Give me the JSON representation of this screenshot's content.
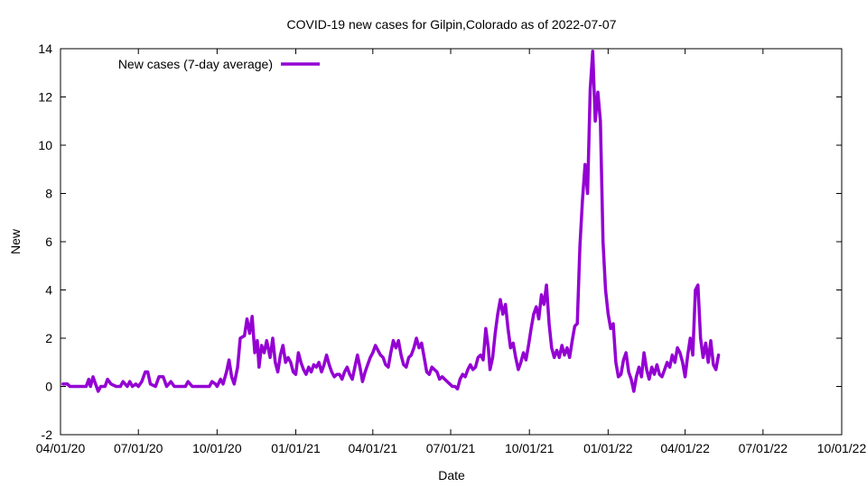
{
  "chart_data": {
    "type": "line",
    "title": "COVID-19 new cases for Gilpin,Colorado as of 2022-07-07",
    "xlabel": "Date",
    "ylabel": "New",
    "xlim": [
      "2020-04-01",
      "2022-10-01"
    ],
    "ylim": [
      -2,
      14
    ],
    "x_ticks": [
      "04/01/20",
      "07/01/20",
      "10/01/20",
      "01/01/21",
      "04/01/21",
      "07/01/21",
      "10/01/21",
      "01/01/22",
      "04/01/22",
      "07/01/22",
      "10/01/22"
    ],
    "y_ticks": [
      -2,
      0,
      2,
      4,
      6,
      8,
      10,
      12,
      14
    ],
    "grid": false,
    "legend": {
      "placement": "top-left"
    },
    "series": [
      {
        "name": "New cases (7-day average)",
        "color": "#9400d3",
        "points": [
          [
            "2020-04-04",
            0.1
          ],
          [
            "2020-04-09",
            0.1
          ],
          [
            "2020-04-12",
            0.0
          ],
          [
            "2020-05-01",
            0.0
          ],
          [
            "2020-05-04",
            0.3
          ],
          [
            "2020-05-06",
            0.0
          ],
          [
            "2020-05-09",
            0.4
          ],
          [
            "2020-05-12",
            0.1
          ],
          [
            "2020-05-15",
            -0.2
          ],
          [
            "2020-05-18",
            0.0
          ],
          [
            "2020-05-23",
            0.0
          ],
          [
            "2020-05-26",
            0.3
          ],
          [
            "2020-05-30",
            0.1
          ],
          [
            "2020-06-05",
            0.0
          ],
          [
            "2020-06-10",
            0.0
          ],
          [
            "2020-06-13",
            0.2
          ],
          [
            "2020-06-18",
            0.0
          ],
          [
            "2020-06-21",
            0.2
          ],
          [
            "2020-06-24",
            0.0
          ],
          [
            "2020-06-28",
            0.1
          ],
          [
            "2020-07-01",
            0.0
          ],
          [
            "2020-07-05",
            0.2
          ],
          [
            "2020-07-09",
            0.6
          ],
          [
            "2020-07-12",
            0.6
          ],
          [
            "2020-07-15",
            0.1
          ],
          [
            "2020-07-21",
            0.0
          ],
          [
            "2020-07-25",
            0.4
          ],
          [
            "2020-07-30",
            0.4
          ],
          [
            "2020-08-03",
            0.0
          ],
          [
            "2020-08-08",
            0.2
          ],
          [
            "2020-08-12",
            0.0
          ],
          [
            "2020-08-25",
            0.0
          ],
          [
            "2020-08-28",
            0.2
          ],
          [
            "2020-09-02",
            0.0
          ],
          [
            "2020-09-22",
            0.0
          ],
          [
            "2020-09-25",
            0.2
          ],
          [
            "2020-09-29",
            0.1
          ],
          [
            "2020-10-01",
            0.0
          ],
          [
            "2020-10-05",
            0.3
          ],
          [
            "2020-10-08",
            0.1
          ],
          [
            "2020-10-12",
            0.6
          ],
          [
            "2020-10-15",
            1.1
          ],
          [
            "2020-10-18",
            0.4
          ],
          [
            "2020-10-21",
            0.1
          ],
          [
            "2020-10-25",
            0.8
          ],
          [
            "2020-10-28",
            2.0
          ],
          [
            "2020-11-02",
            2.1
          ],
          [
            "2020-11-05",
            2.8
          ],
          [
            "2020-11-08",
            2.2
          ],
          [
            "2020-11-11",
            2.9
          ],
          [
            "2020-11-14",
            1.4
          ],
          [
            "2020-11-17",
            1.9
          ],
          [
            "2020-11-19",
            0.8
          ],
          [
            "2020-11-22",
            1.7
          ],
          [
            "2020-11-25",
            1.4
          ],
          [
            "2020-11-28",
            1.9
          ],
          [
            "2020-12-02",
            1.2
          ],
          [
            "2020-12-05",
            2.0
          ],
          [
            "2020-12-08",
            1.0
          ],
          [
            "2020-12-11",
            0.6
          ],
          [
            "2020-12-14",
            1.3
          ],
          [
            "2020-12-17",
            1.7
          ],
          [
            "2020-12-20",
            1.0
          ],
          [
            "2020-12-23",
            1.2
          ],
          [
            "2020-12-26",
            1.0
          ],
          [
            "2020-12-29",
            0.6
          ],
          [
            "2021-01-01",
            0.5
          ],
          [
            "2021-01-04",
            1.4
          ],
          [
            "2021-01-07",
            1.0
          ],
          [
            "2021-01-10",
            0.7
          ],
          [
            "2021-01-13",
            0.5
          ],
          [
            "2021-01-16",
            0.8
          ],
          [
            "2021-01-19",
            0.6
          ],
          [
            "2021-01-22",
            0.9
          ],
          [
            "2021-01-25",
            0.8
          ],
          [
            "2021-01-28",
            1.0
          ],
          [
            "2021-01-31",
            0.6
          ],
          [
            "2021-02-03",
            0.9
          ],
          [
            "2021-02-06",
            1.3
          ],
          [
            "2021-02-09",
            0.9
          ],
          [
            "2021-02-12",
            0.6
          ],
          [
            "2021-02-15",
            0.4
          ],
          [
            "2021-02-18",
            0.5
          ],
          [
            "2021-02-21",
            0.5
          ],
          [
            "2021-02-24",
            0.3
          ],
          [
            "2021-02-27",
            0.6
          ],
          [
            "2021-03-02",
            0.8
          ],
          [
            "2021-03-05",
            0.5
          ],
          [
            "2021-03-08",
            0.3
          ],
          [
            "2021-03-11",
            0.8
          ],
          [
            "2021-03-14",
            1.3
          ],
          [
            "2021-03-17",
            0.8
          ],
          [
            "2021-03-20",
            0.2
          ],
          [
            "2021-03-23",
            0.6
          ],
          [
            "2021-03-26",
            0.9
          ],
          [
            "2021-03-29",
            1.2
          ],
          [
            "2021-04-01",
            1.4
          ],
          [
            "2021-04-04",
            1.7
          ],
          [
            "2021-04-07",
            1.5
          ],
          [
            "2021-04-10",
            1.3
          ],
          [
            "2021-04-13",
            1.2
          ],
          [
            "2021-04-16",
            0.9
          ],
          [
            "2021-04-19",
            0.8
          ],
          [
            "2021-04-22",
            1.4
          ],
          [
            "2021-04-25",
            1.9
          ],
          [
            "2021-04-28",
            1.6
          ],
          [
            "2021-05-01",
            1.9
          ],
          [
            "2021-05-04",
            1.3
          ],
          [
            "2021-05-07",
            0.9
          ],
          [
            "2021-05-10",
            0.8
          ],
          [
            "2021-05-13",
            1.2
          ],
          [
            "2021-05-16",
            1.3
          ],
          [
            "2021-05-19",
            1.6
          ],
          [
            "2021-05-22",
            2.0
          ],
          [
            "2021-05-25",
            1.6
          ],
          [
            "2021-05-28",
            1.8
          ],
          [
            "2021-05-31",
            1.2
          ],
          [
            "2021-06-03",
            0.6
          ],
          [
            "2021-06-06",
            0.5
          ],
          [
            "2021-06-09",
            0.8
          ],
          [
            "2021-06-12",
            0.7
          ],
          [
            "2021-06-15",
            0.6
          ],
          [
            "2021-06-18",
            0.3
          ],
          [
            "2021-06-21",
            0.4
          ],
          [
            "2021-06-24",
            0.3
          ],
          [
            "2021-06-27",
            0.2
          ],
          [
            "2021-06-30",
            0.1
          ],
          [
            "2021-07-03",
            0.0
          ],
          [
            "2021-07-06",
            0.0
          ],
          [
            "2021-07-09",
            -0.1
          ],
          [
            "2021-07-12",
            0.3
          ],
          [
            "2021-07-15",
            0.5
          ],
          [
            "2021-07-18",
            0.4
          ],
          [
            "2021-07-21",
            0.7
          ],
          [
            "2021-07-24",
            0.9
          ],
          [
            "2021-07-27",
            0.7
          ],
          [
            "2021-07-30",
            0.8
          ],
          [
            "2021-08-02",
            1.2
          ],
          [
            "2021-08-05",
            1.3
          ],
          [
            "2021-08-08",
            1.1
          ],
          [
            "2021-08-11",
            2.4
          ],
          [
            "2021-08-14",
            1.6
          ],
          [
            "2021-08-16",
            0.7
          ],
          [
            "2021-08-19",
            1.2
          ],
          [
            "2021-08-22",
            2.2
          ],
          [
            "2021-08-25",
            3.0
          ],
          [
            "2021-08-28",
            3.6
          ],
          [
            "2021-08-31",
            3.0
          ],
          [
            "2021-09-03",
            3.4
          ],
          [
            "2021-09-06",
            2.4
          ],
          [
            "2021-09-09",
            1.6
          ],
          [
            "2021-09-12",
            1.8
          ],
          [
            "2021-09-15",
            1.2
          ],
          [
            "2021-09-18",
            0.7
          ],
          [
            "2021-09-21",
            1.0
          ],
          [
            "2021-09-24",
            1.4
          ],
          [
            "2021-09-27",
            1.1
          ],
          [
            "2021-09-30",
            1.7
          ],
          [
            "2021-10-03",
            2.4
          ],
          [
            "2021-10-06",
            3.0
          ],
          [
            "2021-10-09",
            3.3
          ],
          [
            "2021-10-12",
            2.8
          ],
          [
            "2021-10-15",
            3.8
          ],
          [
            "2021-10-18",
            3.4
          ],
          [
            "2021-10-21",
            4.2
          ],
          [
            "2021-10-24",
            2.6
          ],
          [
            "2021-10-27",
            1.6
          ],
          [
            "2021-10-30",
            1.2
          ],
          [
            "2021-11-02",
            1.5
          ],
          [
            "2021-11-05",
            1.2
          ],
          [
            "2021-11-08",
            1.7
          ],
          [
            "2021-11-11",
            1.3
          ],
          [
            "2021-11-14",
            1.6
          ],
          [
            "2021-11-17",
            1.2
          ],
          [
            "2021-11-20",
            1.9
          ],
          [
            "2021-11-23",
            2.5
          ],
          [
            "2021-11-26",
            2.6
          ],
          [
            "2021-11-29",
            5.8
          ],
          [
            "2021-12-02",
            7.7
          ],
          [
            "2021-12-05",
            9.2
          ],
          [
            "2021-12-08",
            8.0
          ],
          [
            "2021-12-11",
            12.3
          ],
          [
            "2021-12-14",
            13.9
          ],
          [
            "2021-12-17",
            11.0
          ],
          [
            "2021-12-20",
            12.2
          ],
          [
            "2021-12-23",
            11.0
          ],
          [
            "2021-12-26",
            6.0
          ],
          [
            "2021-12-29",
            4.0
          ],
          [
            "2022-01-01",
            3.0
          ],
          [
            "2022-01-04",
            2.4
          ],
          [
            "2022-01-07",
            2.6
          ],
          [
            "2022-01-10",
            1.0
          ],
          [
            "2022-01-13",
            0.4
          ],
          [
            "2022-01-16",
            0.5
          ],
          [
            "2022-01-19",
            1.1
          ],
          [
            "2022-01-22",
            1.4
          ],
          [
            "2022-01-25",
            0.6
          ],
          [
            "2022-01-28",
            0.3
          ],
          [
            "2022-01-31",
            -0.2
          ],
          [
            "2022-02-03",
            0.4
          ],
          [
            "2022-02-06",
            0.8
          ],
          [
            "2022-02-09",
            0.4
          ],
          [
            "2022-02-12",
            1.4
          ],
          [
            "2022-02-15",
            0.7
          ],
          [
            "2022-02-18",
            0.3
          ],
          [
            "2022-02-21",
            0.8
          ],
          [
            "2022-02-24",
            0.5
          ],
          [
            "2022-02-27",
            0.9
          ],
          [
            "2022-03-02",
            0.5
          ],
          [
            "2022-03-05",
            0.4
          ],
          [
            "2022-03-08",
            0.7
          ],
          [
            "2022-03-11",
            1.0
          ],
          [
            "2022-03-14",
            0.8
          ],
          [
            "2022-03-17",
            1.3
          ],
          [
            "2022-03-20",
            1.0
          ],
          [
            "2022-03-23",
            1.6
          ],
          [
            "2022-03-26",
            1.4
          ],
          [
            "2022-03-29",
            1.0
          ],
          [
            "2022-04-01",
            0.4
          ],
          [
            "2022-04-04",
            1.3
          ],
          [
            "2022-04-07",
            2.0
          ],
          [
            "2022-04-10",
            1.3
          ],
          [
            "2022-04-13",
            4.0
          ],
          [
            "2022-04-16",
            4.2
          ],
          [
            "2022-04-19",
            2.0
          ],
          [
            "2022-04-22",
            1.2
          ],
          [
            "2022-04-25",
            1.8
          ],
          [
            "2022-04-28",
            1.0
          ],
          [
            "2022-05-01",
            1.9
          ],
          [
            "2022-05-04",
            0.9
          ],
          [
            "2022-05-07",
            0.7
          ],
          [
            "2022-05-10",
            1.3
          ]
        ]
      }
    ]
  }
}
